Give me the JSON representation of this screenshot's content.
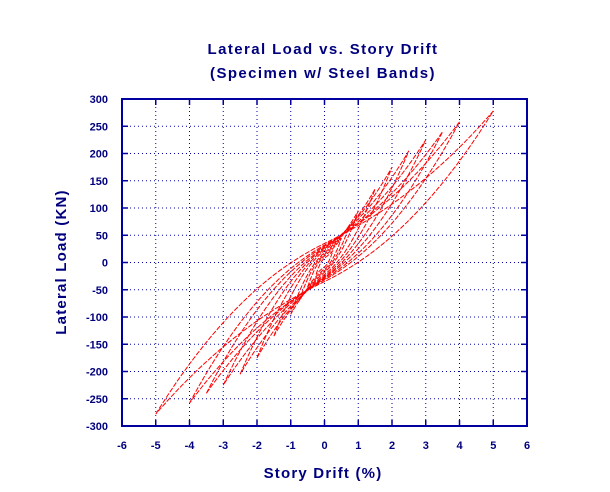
{
  "chart_data": {
    "type": "line",
    "title": "Lateral Load vs. Story Drift",
    "subtitle": "(Specimen w/ Steel Bands)",
    "xlabel": "Story Drift (%)",
    "ylabel": "Lateral Load (KN)",
    "xlim": [
      -6,
      6
    ],
    "ylim": [
      -300,
      300
    ],
    "x_ticks": [
      "-6",
      "-5",
      "-4",
      "-3",
      "-2",
      "-1",
      "0",
      "1",
      "2",
      "3",
      "4",
      "5",
      "6"
    ],
    "y_ticks": [
      "300",
      "250",
      "200",
      "150",
      "100",
      "50",
      "0",
      "-50",
      "-100",
      "-150",
      "-200",
      "-250",
      "-300"
    ],
    "grid": true,
    "colors": {
      "text": "#00007f",
      "axis": "#0000a0",
      "grid": "#0000a0",
      "series": "#ff0000"
    },
    "series": [
      {
        "loops": [
          {
            "peak_drift": 0.25,
            "peak_load": 22,
            "pinch": 8
          },
          {
            "peak_drift": 0.5,
            "peak_load": 45,
            "pinch": 12
          },
          {
            "peak_drift": 0.75,
            "peak_load": 70,
            "pinch": 15
          },
          {
            "peak_drift": 1.0,
            "peak_load": 95,
            "pinch": 18
          },
          {
            "peak_drift": 1.5,
            "peak_load": 135,
            "pinch": 22
          },
          {
            "peak_drift": 2.0,
            "peak_load": 175,
            "pinch": 25
          },
          {
            "peak_drift": 2.5,
            "peak_load": 205,
            "pinch": 27
          },
          {
            "peak_drift": 3.0,
            "peak_load": 225,
            "pinch": 28
          },
          {
            "peak_drift": 3.5,
            "peak_load": 240,
            "pinch": 30
          },
          {
            "peak_drift": 4.0,
            "peak_load": 258,
            "pinch": 32
          },
          {
            "peak_drift": 5.0,
            "peak_load": 278,
            "pinch": 35
          }
        ]
      }
    ]
  }
}
